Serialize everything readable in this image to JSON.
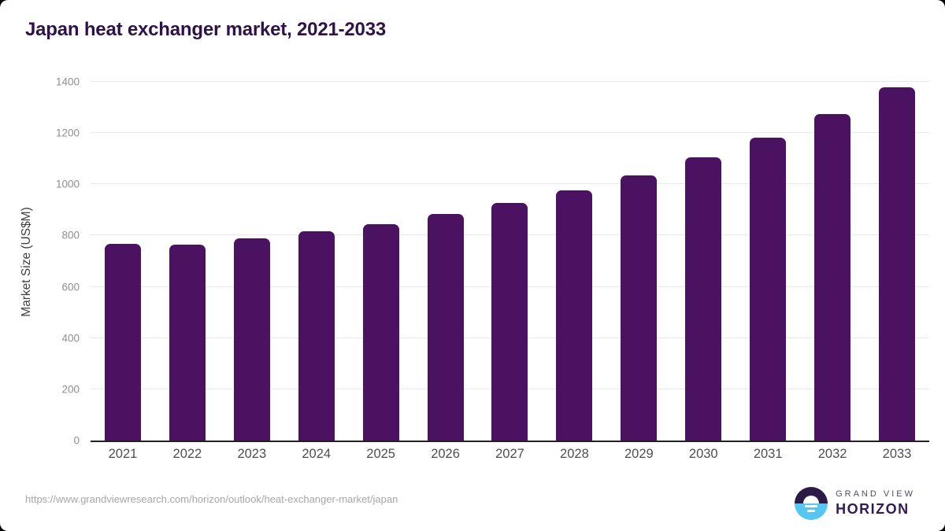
{
  "page": {
    "source_url": "https://www.grandviewresearch.com/horizon/outlook/heat-exchanger-market/japan"
  },
  "branding": {
    "logo_icon": "horizon-sun-circle-icon",
    "name_line1": "GRAND VIEW",
    "name_line2": "HORIZON",
    "colors": {
      "logo_top": "#2c1a47",
      "logo_bottom": "#57c6f2",
      "wordmark_primary": "#514d66",
      "wordmark_secondary": "#321a52"
    }
  },
  "chart_data": {
    "type": "bar",
    "title": "Japan heat exchanger market, 2021-2033",
    "categories": [
      "2021",
      "2022",
      "2023",
      "2024",
      "2025",
      "2026",
      "2027",
      "2028",
      "2029",
      "2030",
      "2031",
      "2032",
      "2033"
    ],
    "values": [
      768,
      766,
      790,
      817,
      845,
      884,
      926,
      977,
      1036,
      1104,
      1182,
      1273,
      1378
    ],
    "xlabel": "",
    "ylabel": "Market Size (US$M)",
    "ylim": [
      0,
      1400
    ],
    "ytick_step": 200,
    "yticks": [
      0,
      200,
      400,
      600,
      800,
      1000,
      1200,
      1400
    ],
    "grid": "horizontal",
    "legend": "none",
    "colors": {
      "bar": "#4a1261",
      "title": "#2e1248",
      "ytick_label": "#8f8f8f",
      "xtick_label": "#4e4e4e",
      "axis_line": "#202020",
      "gridline": "#e9e9e9"
    }
  }
}
